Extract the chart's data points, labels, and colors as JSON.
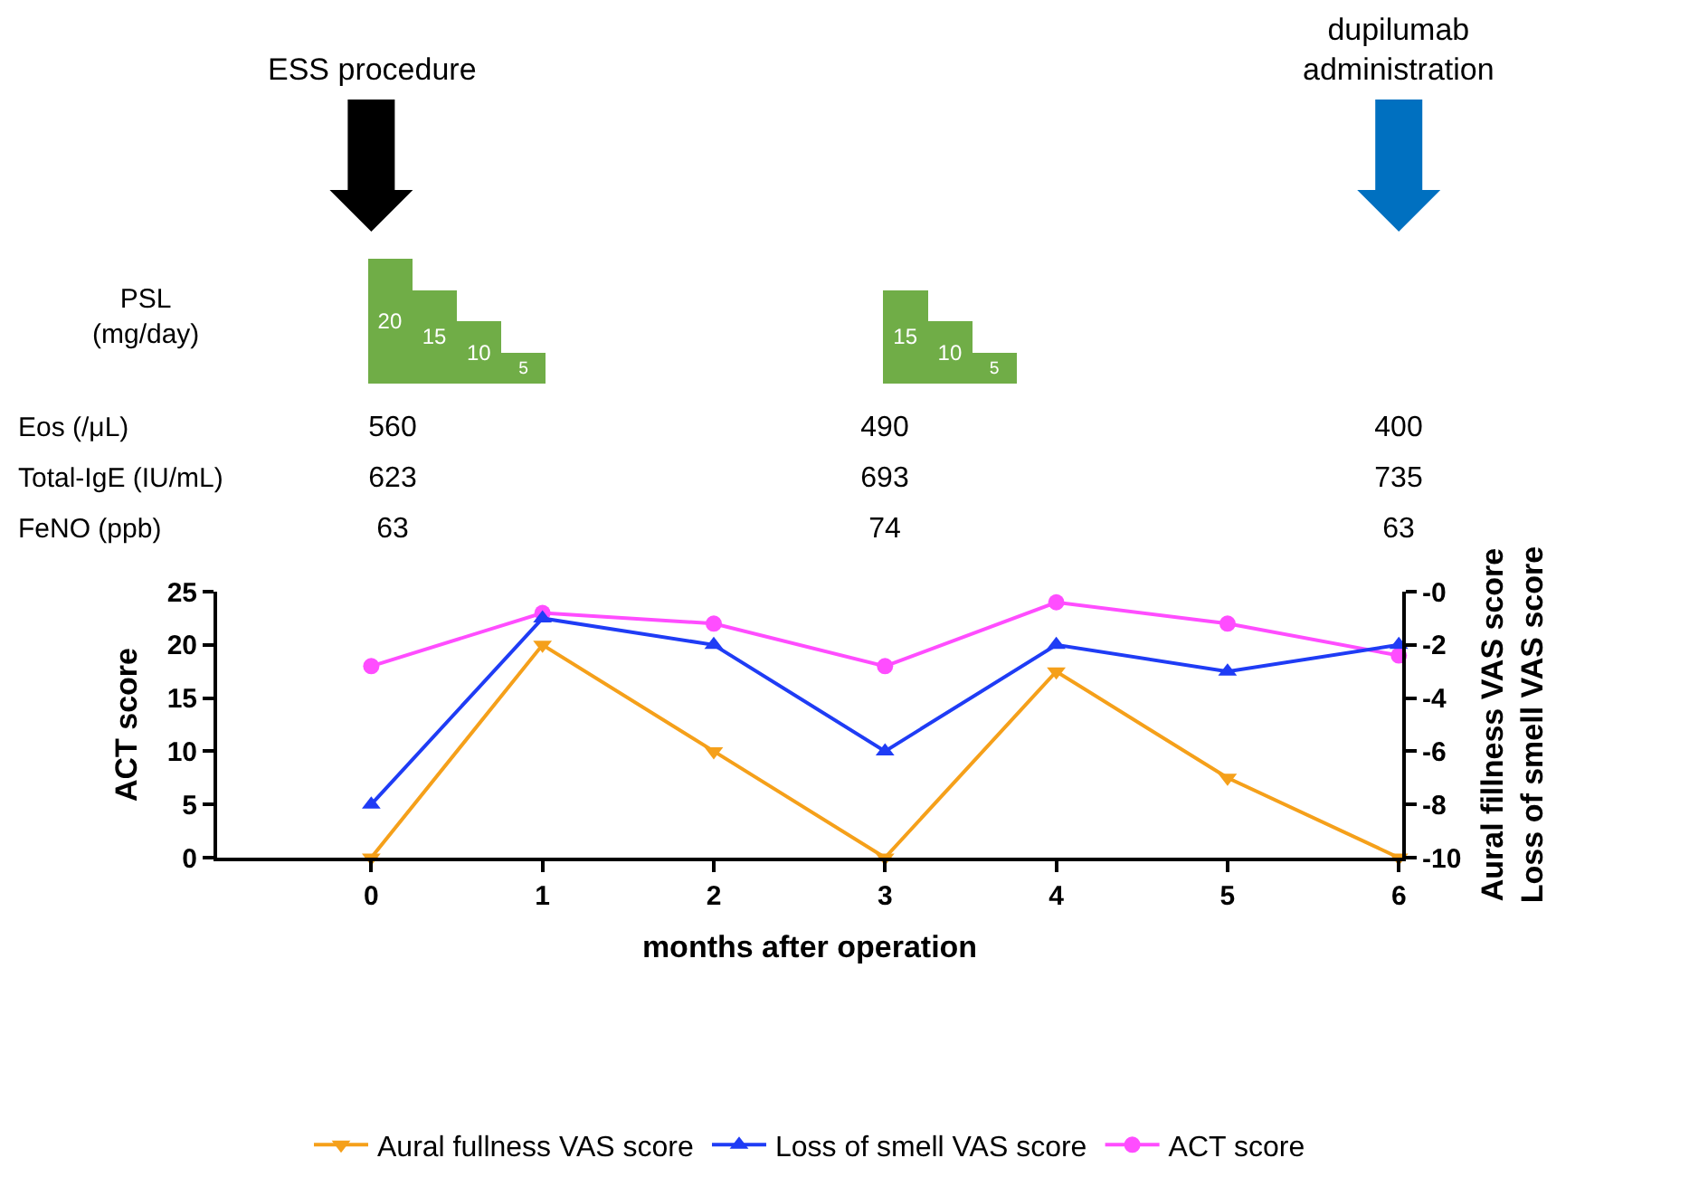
{
  "chart_data": [
    {
      "type": "bar",
      "ylabel": "PSL\n(mg/day)",
      "categories": [
        null,
        null,
        null,
        null
      ],
      "values": [
        20,
        15,
        10,
        5
      ],
      "color": "#70ad47",
      "data_labels": true,
      "ylim": [
        0,
        20
      ],
      "tick_labels": false,
      "grid": false,
      "legend": false,
      "annotations": [
        "ESS procedure",
        "dupilumab\nadministration"
      ]
    },
    {
      "type": "bar",
      "categories": [
        null,
        null,
        null
      ],
      "values": [
        15,
        10,
        5
      ],
      "color": "#70ad47",
      "data_labels": true,
      "tick_labels": false,
      "grid": false,
      "legend": false
    },
    {
      "type": "other",
      "annotations": [
        "Eos (/μL)",
        "560",
        "490",
        "400",
        "Total-IgE (IU/mL)",
        "623",
        "693",
        "735",
        "FeNO (ppb)",
        "63",
        "74",
        "63"
      ]
    },
    {
      "type": "line",
      "x": [
        0,
        1,
        2,
        3,
        4,
        5,
        6
      ],
      "xlabel": "months after operation",
      "ylabel": "ACT score",
      "y2label": "Aural fillness VAS score\nLoss of smell VAS score",
      "xlim": [
        -0.9,
        6.02
      ],
      "xticks": [
        0,
        1,
        2,
        3,
        4,
        5,
        6
      ],
      "ylim": [
        0,
        25
      ],
      "yticks": [
        0,
        5,
        10,
        15,
        20,
        25
      ],
      "y2lim": [
        -10,
        0
      ],
      "y2ticks": [
        -10,
        -8,
        -6,
        -4,
        -2,
        {
          "value": 0,
          "label": "-0"
        }
      ],
      "grid": false,
      "legend": "bottom",
      "line_style": "solid",
      "series": [
        {
          "name": "Aural fullness VAS score",
          "color": "#f5a01a",
          "axis": "y2",
          "marker": "triangle-down",
          "values": [
            -10,
            -2,
            -6,
            -10,
            -3,
            -7,
            -10
          ]
        },
        {
          "name": "Loss of smell VAS score",
          "color": "#1f3cf5",
          "axis": "y2",
          "marker": "triangle",
          "values": [
            -8,
            -1,
            -2,
            -6,
            -2,
            -3,
            -2
          ]
        },
        {
          "name": "ACT score",
          "color": "#ff4dff",
          "axis": "y",
          "marker": "circle",
          "values": [
            18,
            23,
            22,
            18,
            24,
            22,
            19
          ]
        }
      ]
    }
  ]
}
